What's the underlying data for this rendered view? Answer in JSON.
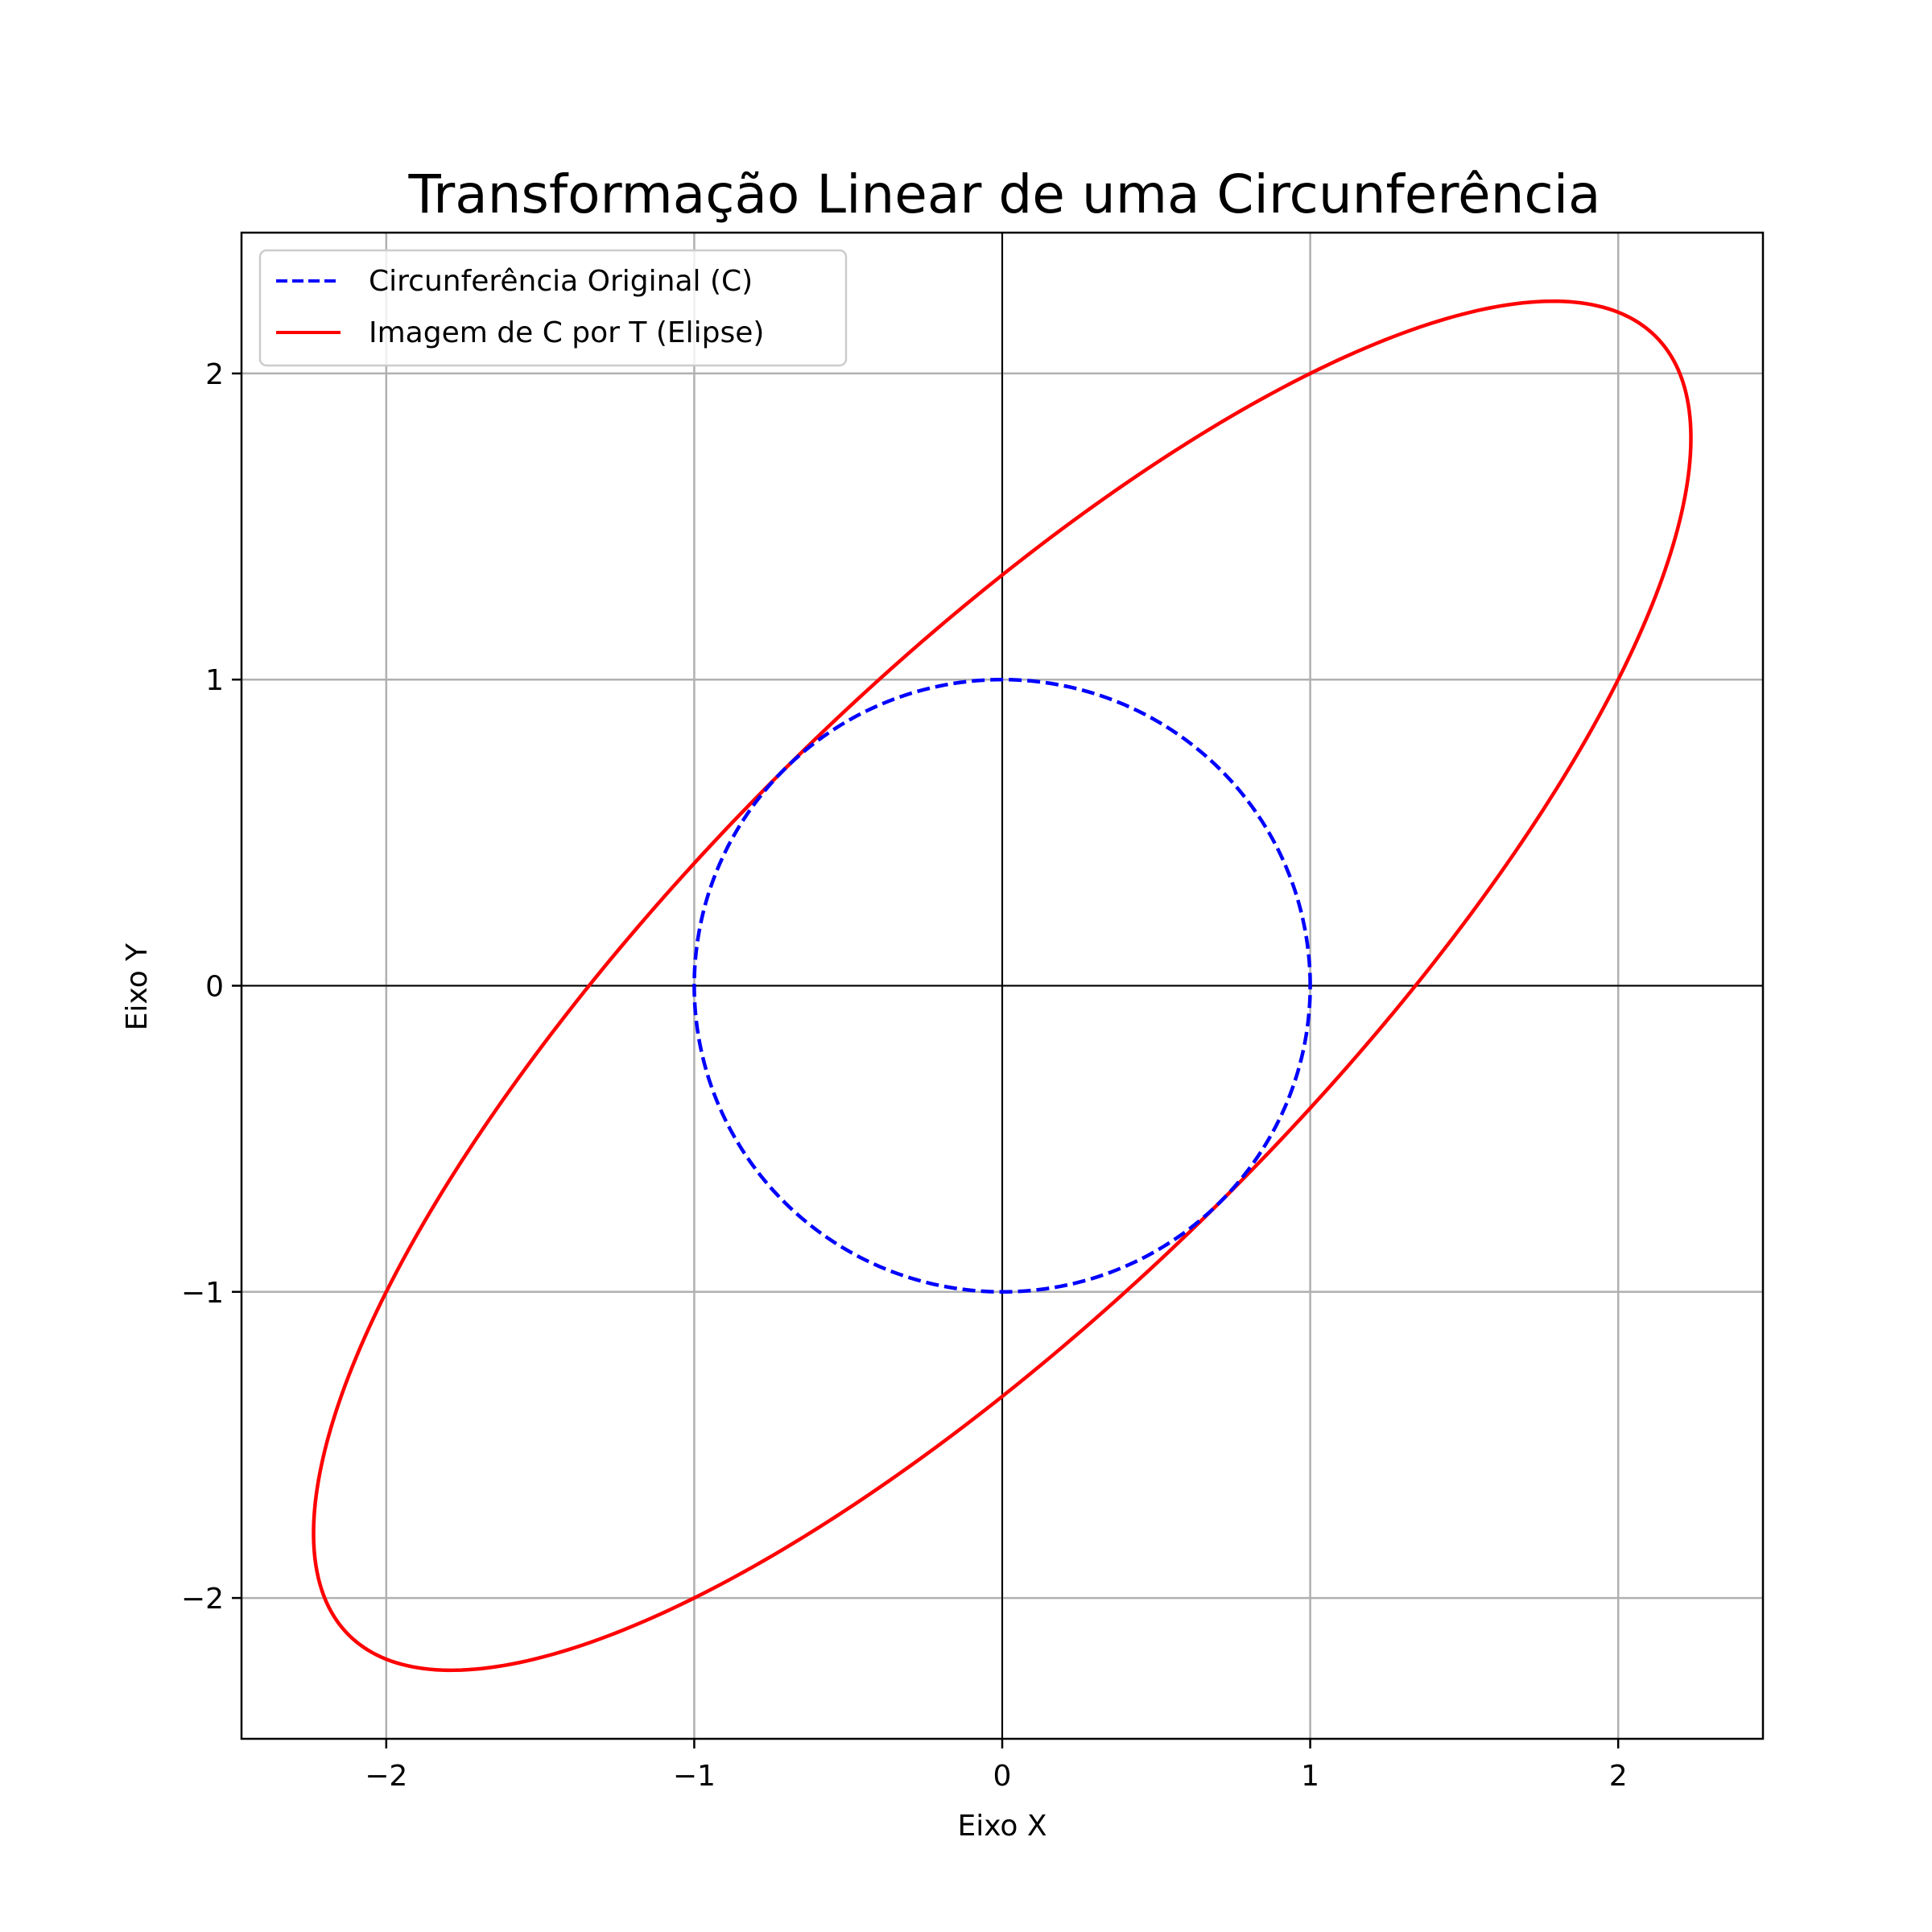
{
  "chart_data": {
    "type": "line",
    "title": "Transformação Linear de uma Circunferência",
    "xlabel": "Eixo X",
    "ylabel": "Eixo Y",
    "xlim": [
      -2.47,
      2.47
    ],
    "ylim": [
      -2.46,
      2.46
    ],
    "aspect": "equal",
    "grid": true,
    "legend_position": "top-left",
    "xticks": [
      -2,
      -1,
      0,
      1,
      2
    ],
    "yticks": [
      -2,
      -1,
      0,
      1,
      2
    ],
    "xtick_labels": [
      "−2",
      "−1",
      "0",
      "1",
      "2"
    ],
    "ytick_labels": [
      "−2",
      "−1",
      "0",
      "1",
      "2"
    ],
    "reference_lines": {
      "x": 0,
      "y": 0,
      "color": "#000000"
    },
    "series": [
      {
        "name": "Circunferência Original (C)",
        "style": "dashed",
        "color": "#0000ff",
        "parametric": "x = cos(t), y = sin(t)",
        "points": [
          [
            1,
            0
          ],
          [
            0.707,
            0.707
          ],
          [
            0,
            1
          ],
          [
            -0.707,
            0.707
          ],
          [
            -1,
            0
          ],
          [
            -0.707,
            -0.707
          ],
          [
            0,
            -1
          ],
          [
            0.707,
            -0.707
          ],
          [
            1,
            0
          ]
        ]
      },
      {
        "name": "Imagem de C por T (Elipse)",
        "style": "solid",
        "color": "#ff0000",
        "parametric": "x = 2cos(t) + sin(t), y = cos(t) + 2sin(t)",
        "points": [
          [
            2,
            1
          ],
          [
            2.121,
            2.121
          ],
          [
            1,
            2
          ],
          [
            -0.707,
            0.707
          ],
          [
            -2,
            -1
          ],
          [
            -2.121,
            -2.121
          ],
          [
            -1,
            -2
          ],
          [
            0.707,
            -0.707
          ],
          [
            2,
            1
          ]
        ]
      }
    ]
  }
}
